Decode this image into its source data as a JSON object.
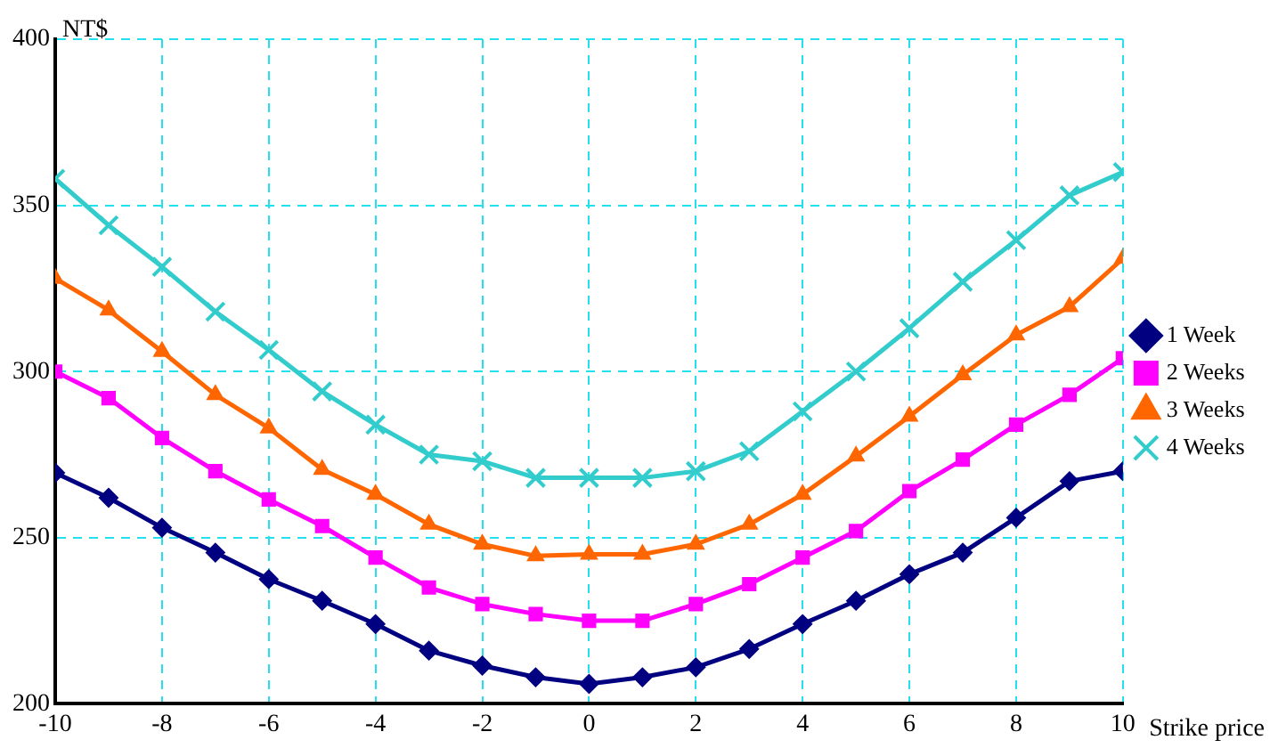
{
  "chart_data": {
    "type": "line",
    "ylabel": "NT$",
    "xlabel": "Strike price",
    "x": [
      -10,
      -9,
      -8,
      -7,
      -6,
      -5,
      -4,
      -3,
      -2,
      -1,
      0,
      1,
      2,
      3,
      4,
      5,
      6,
      7,
      8,
      9,
      10
    ],
    "xlim": [
      -10,
      10
    ],
    "xticks": [
      -10,
      -8,
      -6,
      -4,
      -2,
      0,
      2,
      4,
      6,
      8,
      10
    ],
    "ylim": [
      200,
      400
    ],
    "yticks": [
      200,
      250,
      300,
      350,
      400
    ],
    "grid": true,
    "legend": "right",
    "line_style": "solid",
    "series": [
      {
        "name": "1 Week",
        "color": "#000080",
        "marker": "diamond",
        "values": [
          269.5,
          262,
          253,
          245.5,
          237.5,
          231,
          224,
          216,
          211.5,
          208,
          206,
          208,
          211,
          216.5,
          224,
          231,
          239,
          245.5,
          256,
          267,
          270
        ]
      },
      {
        "name": "2 Weeks",
        "color": "#ff00ff",
        "marker": "square",
        "values": [
          300,
          292,
          280,
          270,
          261.5,
          253.5,
          244,
          235,
          230,
          227,
          225,
          225,
          230,
          236,
          244,
          252,
          264,
          273.5,
          284,
          293,
          304
        ]
      },
      {
        "name": "3 Weeks",
        "color": "#ff6600",
        "marker": "triangle",
        "values": [
          328,
          318.5,
          306,
          293,
          283,
          270.5,
          263,
          254,
          248,
          244.5,
          245,
          245,
          248,
          254,
          263,
          274.5,
          286.5,
          299,
          311,
          319.5,
          334
        ]
      },
      {
        "name": "4 Weeks",
        "color": "#33cccc",
        "marker": "cross",
        "values": [
          358,
          344,
          331.5,
          318,
          306.5,
          294,
          284,
          275,
          273,
          268,
          268,
          268,
          270,
          276,
          288,
          300,
          313,
          327,
          339.5,
          353,
          360
        ]
      }
    ]
  }
}
